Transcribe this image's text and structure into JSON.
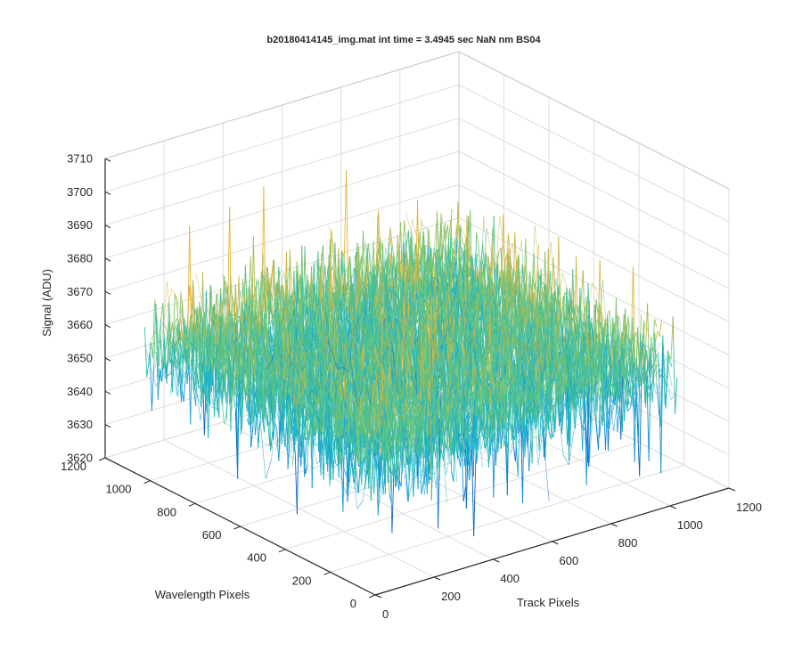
{
  "chart_data": {
    "type": "surface",
    "title": "b20180414145_img.mat int time = 3.4945 sec  NaN nm BS04",
    "xlabel": "Track Pixels",
    "ylabel": "Wavelength Pixels",
    "zlabel": "Signal (ADU)",
    "xlim": [
      0,
      1200
    ],
    "ylim": [
      0,
      1200
    ],
    "zlim": [
      3620,
      3710
    ],
    "x_ticks": [
      "0",
      "200",
      "400",
      "600",
      "800",
      "1000",
      "1200"
    ],
    "y_ticks": [
      "0",
      "200",
      "400",
      "600",
      "800",
      "1000",
      "1200"
    ],
    "z_ticks": [
      "3620",
      "3630",
      "3640",
      "3650",
      "3660",
      "3670",
      "3680",
      "3690",
      "3700",
      "3710"
    ],
    "grid": true,
    "surface": {
      "x_range": [
        0,
        1024
      ],
      "y_range": [
        0,
        1024
      ],
      "mean": 3660,
      "typical_min": 3640,
      "typical_max": 3680,
      "peak_min": 3628,
      "peak_max": 3700
    },
    "colormap": [
      "#0c62c8",
      "#1294db",
      "#1eb3c9",
      "#3fbf9a",
      "#7cc46f",
      "#cdb749",
      "#e3b536"
    ]
  }
}
